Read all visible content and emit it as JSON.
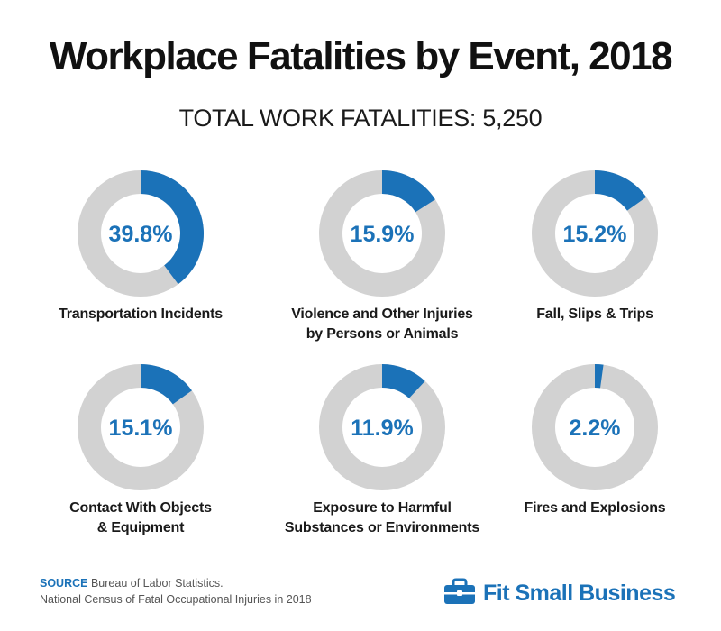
{
  "header": {
    "title": "Workplace Fatalities by Event, 2018",
    "subtitle": "TOTAL WORK FATALITIES: 5,250"
  },
  "colors": {
    "accent": "#1b72b8",
    "track": "#d2d2d2"
  },
  "chart_data": {
    "type": "pie",
    "title": "Workplace Fatalities by Event, 2018",
    "subtitle": "TOTAL WORK FATALITIES: 5,250",
    "unit": "%",
    "categories": [
      "Transportation Incidents",
      "Violence and Other Injuries by Persons or Animals",
      "Fall, Slips & Trips",
      "Contact With Objects & Equipment",
      "Exposure to Harmful Substances or Environments",
      "Fires and Explosions"
    ],
    "items": [
      {
        "label_lines": [
          "Transportation Incidents"
        ],
        "value": 39.8,
        "display": "39.8%"
      },
      {
        "label_lines": [
          "Violence and Other Injuries",
          "by Persons or Animals"
        ],
        "value": 15.9,
        "display": "15.9%"
      },
      {
        "label_lines": [
          "Fall, Slips & Trips"
        ],
        "value": 15.2,
        "display": "15.2%"
      },
      {
        "label_lines": [
          "Contact With Objects",
          "& Equipment"
        ],
        "value": 15.1,
        "display": "15.1%"
      },
      {
        "label_lines": [
          "Exposure to Harmful",
          "Substances or Environments"
        ],
        "value": 11.9,
        "display": "11.9%"
      },
      {
        "label_lines": [
          "Fires and Explosions"
        ],
        "value": 2.2,
        "display": "2.2%"
      }
    ]
  },
  "footer": {
    "source_tag": "SOURCE",
    "source_line1": "Bureau of Labor Statistics.",
    "source_line2": "National Census of Fatal Occupational Injuries in 2018",
    "brand": "Fit Small Business",
    "brand_icon": "briefcase-icon"
  }
}
